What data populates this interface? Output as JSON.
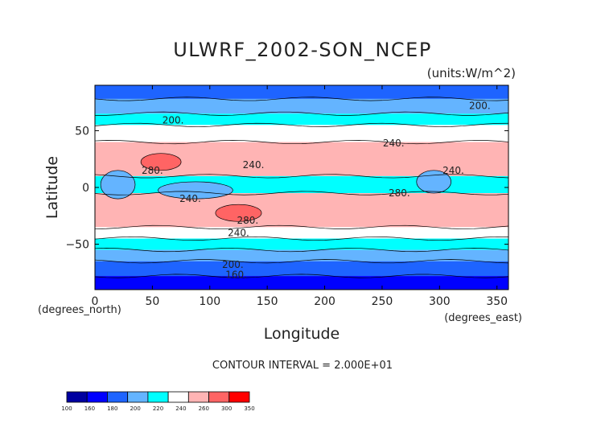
{
  "chart_data": {
    "type": "heatmap",
    "title": "ULWRF_2002-SON_NCEP",
    "units": "(units:W/m^2)",
    "xlabel": "Longitude",
    "ylabel": "Latitude",
    "x_unit_note": "(degrees_east)",
    "y_unit_note": "(degrees_north)",
    "xlim": [
      0,
      360
    ],
    "ylim": [
      -90,
      90
    ],
    "x_ticks": [
      0,
      50,
      100,
      150,
      200,
      250,
      300,
      350
    ],
    "y_ticks": [
      50,
      0,
      -50
    ],
    "contour_interval_label": "CONTOUR INTERVAL = 2.000E+01",
    "contour_labels": [
      {
        "text": "200.",
        "lon": 335,
        "lat": 72
      },
      {
        "text": "200.",
        "lon": 68,
        "lat": 59
      },
      {
        "text": "240.",
        "lon": 260,
        "lat": 39
      },
      {
        "text": "240.",
        "lon": 138,
        "lat": 20
      },
      {
        "text": "280.",
        "lon": 50,
        "lat": 15
      },
      {
        "text": "240.",
        "lon": 312,
        "lat": 15
      },
      {
        "text": "240.",
        "lon": 83,
        "lat": -10
      },
      {
        "text": "280.",
        "lon": 265,
        "lat": -5
      },
      {
        "text": "280.",
        "lon": 133,
        "lat": -29
      },
      {
        "text": "240.",
        "lon": 125,
        "lat": -40
      },
      {
        "text": "200.",
        "lon": 120,
        "lat": -68
      },
      {
        "text": "160.",
        "lon": 123,
        "lat": -77
      }
    ],
    "colorbar": {
      "labels": [
        "100",
        "160",
        "180",
        "200",
        "220",
        "240",
        "260",
        "300",
        "350"
      ],
      "colors": [
        "#0000a0",
        "#0000ff",
        "#1e64ff",
        "#64b4ff",
        "#00ffff",
        "#ffffff",
        "#ffb4b4",
        "#ff6464",
        "#ff0000"
      ]
    },
    "bands_by_latitude": [
      {
        "from": 90,
        "to": 78,
        "value": 190
      },
      {
        "from": 78,
        "to": 65,
        "value": 205
      },
      {
        "from": 65,
        "to": 55,
        "value": 230
      },
      {
        "from": 55,
        "to": 40,
        "value": 245
      },
      {
        "from": 40,
        "to": 10,
        "value": 265
      },
      {
        "from": 10,
        "to": -5,
        "value": 235
      },
      {
        "from": -5,
        "to": -35,
        "value": 275
      },
      {
        "from": -35,
        "to": -45,
        "value": 245
      },
      {
        "from": -45,
        "to": -55,
        "value": 225
      },
      {
        "from": -55,
        "to": -65,
        "value": 205
      },
      {
        "from": -65,
        "to": -78,
        "value": 190
      },
      {
        "from": -78,
        "to": -90,
        "value": 165
      }
    ],
    "cold_cloud_patches": [
      {
        "lon_from": 5,
        "lon_to": 35,
        "lat_from": 15,
        "lat_to": -10,
        "value": 210
      },
      {
        "lon_from": 55,
        "lon_to": 120,
        "lat_from": 5,
        "lat_to": -10,
        "value": 215
      },
      {
        "lon_from": 280,
        "lon_to": 310,
        "lat_from": 15,
        "lat_to": -5,
        "value": 205
      }
    ],
    "warm_patches": [
      {
        "lon_from": 40,
        "lon_to": 75,
        "lat_from": 30,
        "lat_to": 15,
        "value": 300
      },
      {
        "lon_from": 105,
        "lon_to": 145,
        "lat_from": -15,
        "lat_to": -30,
        "value": 305
      }
    ]
  }
}
